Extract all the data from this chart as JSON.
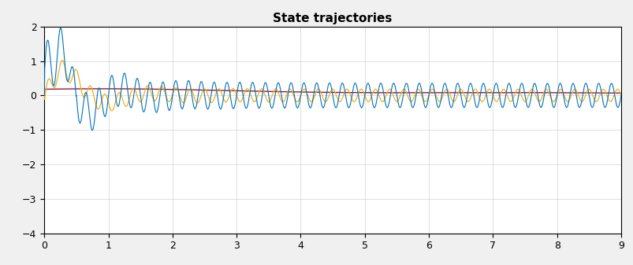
{
  "title": "State trajectories",
  "xlim": [
    0,
    9
  ],
  "ylim": [
    -4,
    2
  ],
  "yticks": [
    -4,
    -3,
    -2,
    -1,
    0,
    1,
    2
  ],
  "xticks": [
    0,
    1,
    2,
    3,
    4,
    5,
    6,
    7,
    8,
    9
  ],
  "color_blue": "#0072BD",
  "color_orange": "#EDB120",
  "color_red": "#A2142F",
  "background_color": "#F0F0F0",
  "axes_background": "#FFFFFF",
  "title_fontsize": 11,
  "tick_fontsize": 9,
  "linewidth_blue": 0.8,
  "linewidth_orange": 0.9,
  "linewidth_red": 1.0
}
